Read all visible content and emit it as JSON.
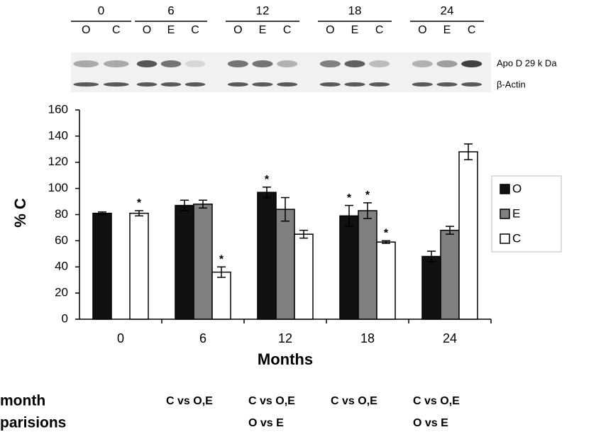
{
  "blot": {
    "groups": [
      {
        "label": "0",
        "lanes": [
          "O",
          "C"
        ]
      },
      {
        "label": "6",
        "lanes": [
          "O",
          "E",
          "C"
        ]
      },
      {
        "label": "12",
        "lanes": [
          "O",
          "E",
          "C"
        ]
      },
      {
        "label": "18",
        "lanes": [
          "O",
          "E",
          "C"
        ]
      },
      {
        "label": "24",
        "lanes": [
          "O",
          "E",
          "C"
        ]
      }
    ],
    "bands": [
      "Apo D 29 k Da",
      "β-Actin"
    ]
  },
  "chart_data": {
    "type": "bar",
    "ylabel": "% C",
    "xlabel": "Months",
    "categories": [
      "0",
      "6",
      "12",
      "18",
      "24"
    ],
    "series": [
      {
        "name": "O",
        "color": "#111111",
        "values": [
          81,
          87,
          97,
          79,
          48
        ],
        "errors": [
          1,
          4,
          4,
          8,
          4
        ],
        "marks": [
          null,
          null,
          "*",
          "*",
          null
        ]
      },
      {
        "name": "E",
        "color": "#808080",
        "values": [
          null,
          88,
          84,
          83,
          68
        ],
        "errors": [
          null,
          3,
          9,
          6,
          3
        ],
        "marks": [
          null,
          null,
          null,
          "*",
          null
        ]
      },
      {
        "name": "C",
        "color": "#ffffff",
        "values": [
          81,
          36,
          65,
          59,
          128
        ],
        "errors": [
          2,
          4,
          3,
          1,
          6
        ],
        "marks": [
          "*",
          "*",
          null,
          "*",
          null
        ]
      }
    ],
    "ylim": [
      0,
      160
    ],
    "yticks": [
      0,
      20,
      40,
      60,
      80,
      100,
      120,
      140,
      160
    ]
  },
  "comparisons": {
    "label": [
      "month",
      "parisions"
    ],
    "columns": [
      {
        "lines": [
          "C vs O,E"
        ]
      },
      {
        "lines": [
          "C vs O,E",
          "O vs E"
        ]
      },
      {
        "lines": [
          "C vs O,E"
        ]
      },
      {
        "lines": [
          "C vs O,E",
          "O vs E"
        ]
      }
    ]
  }
}
